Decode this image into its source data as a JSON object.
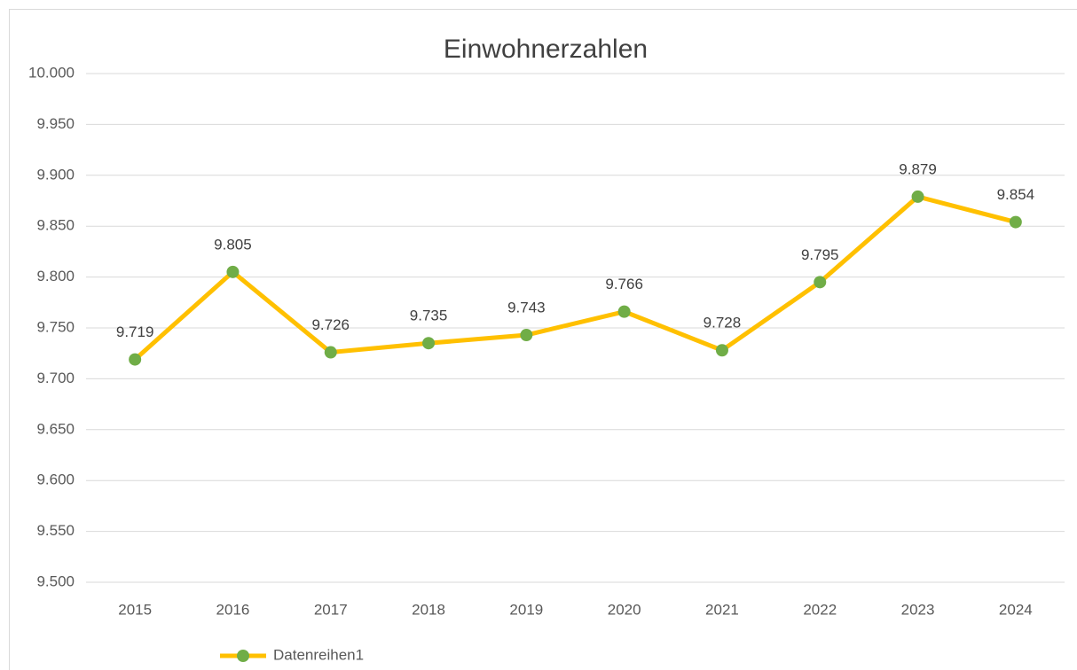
{
  "chart_data": {
    "type": "line",
    "title": "Einwohnerzahlen",
    "categories": [
      "2015",
      "2016",
      "2017",
      "2018",
      "2019",
      "2020",
      "2021",
      "2022",
      "2023",
      "2024"
    ],
    "series": [
      {
        "name": "Datenreihen1",
        "color": "#FFC000",
        "marker_color": "#70AD47",
        "values": [
          9719,
          9805,
          9726,
          9735,
          9743,
          9766,
          9728,
          9795,
          9879,
          9854
        ],
        "value_labels": [
          "9.719",
          "9.805",
          "9.726",
          "9.735",
          "9.743",
          "9.766",
          "9.728",
          "9.795",
          "9.879",
          "9.854"
        ]
      }
    ],
    "ylim": [
      9500,
      10000
    ],
    "yticks": [
      {
        "value": 9500,
        "label": "9.500"
      },
      {
        "value": 9550,
        "label": "9.550"
      },
      {
        "value": 9600,
        "label": "9.600"
      },
      {
        "value": 9650,
        "label": "9.650"
      },
      {
        "value": 9700,
        "label": "9.700"
      },
      {
        "value": 9750,
        "label": "9.750"
      },
      {
        "value": 9800,
        "label": "9.800"
      },
      {
        "value": 9850,
        "label": "9.850"
      },
      {
        "value": 9900,
        "label": "9.900"
      },
      {
        "value": 9950,
        "label": "9.950"
      },
      {
        "value": 10000,
        "label": "10.000"
      }
    ],
    "grid": true,
    "legend": "bottom-left"
  }
}
